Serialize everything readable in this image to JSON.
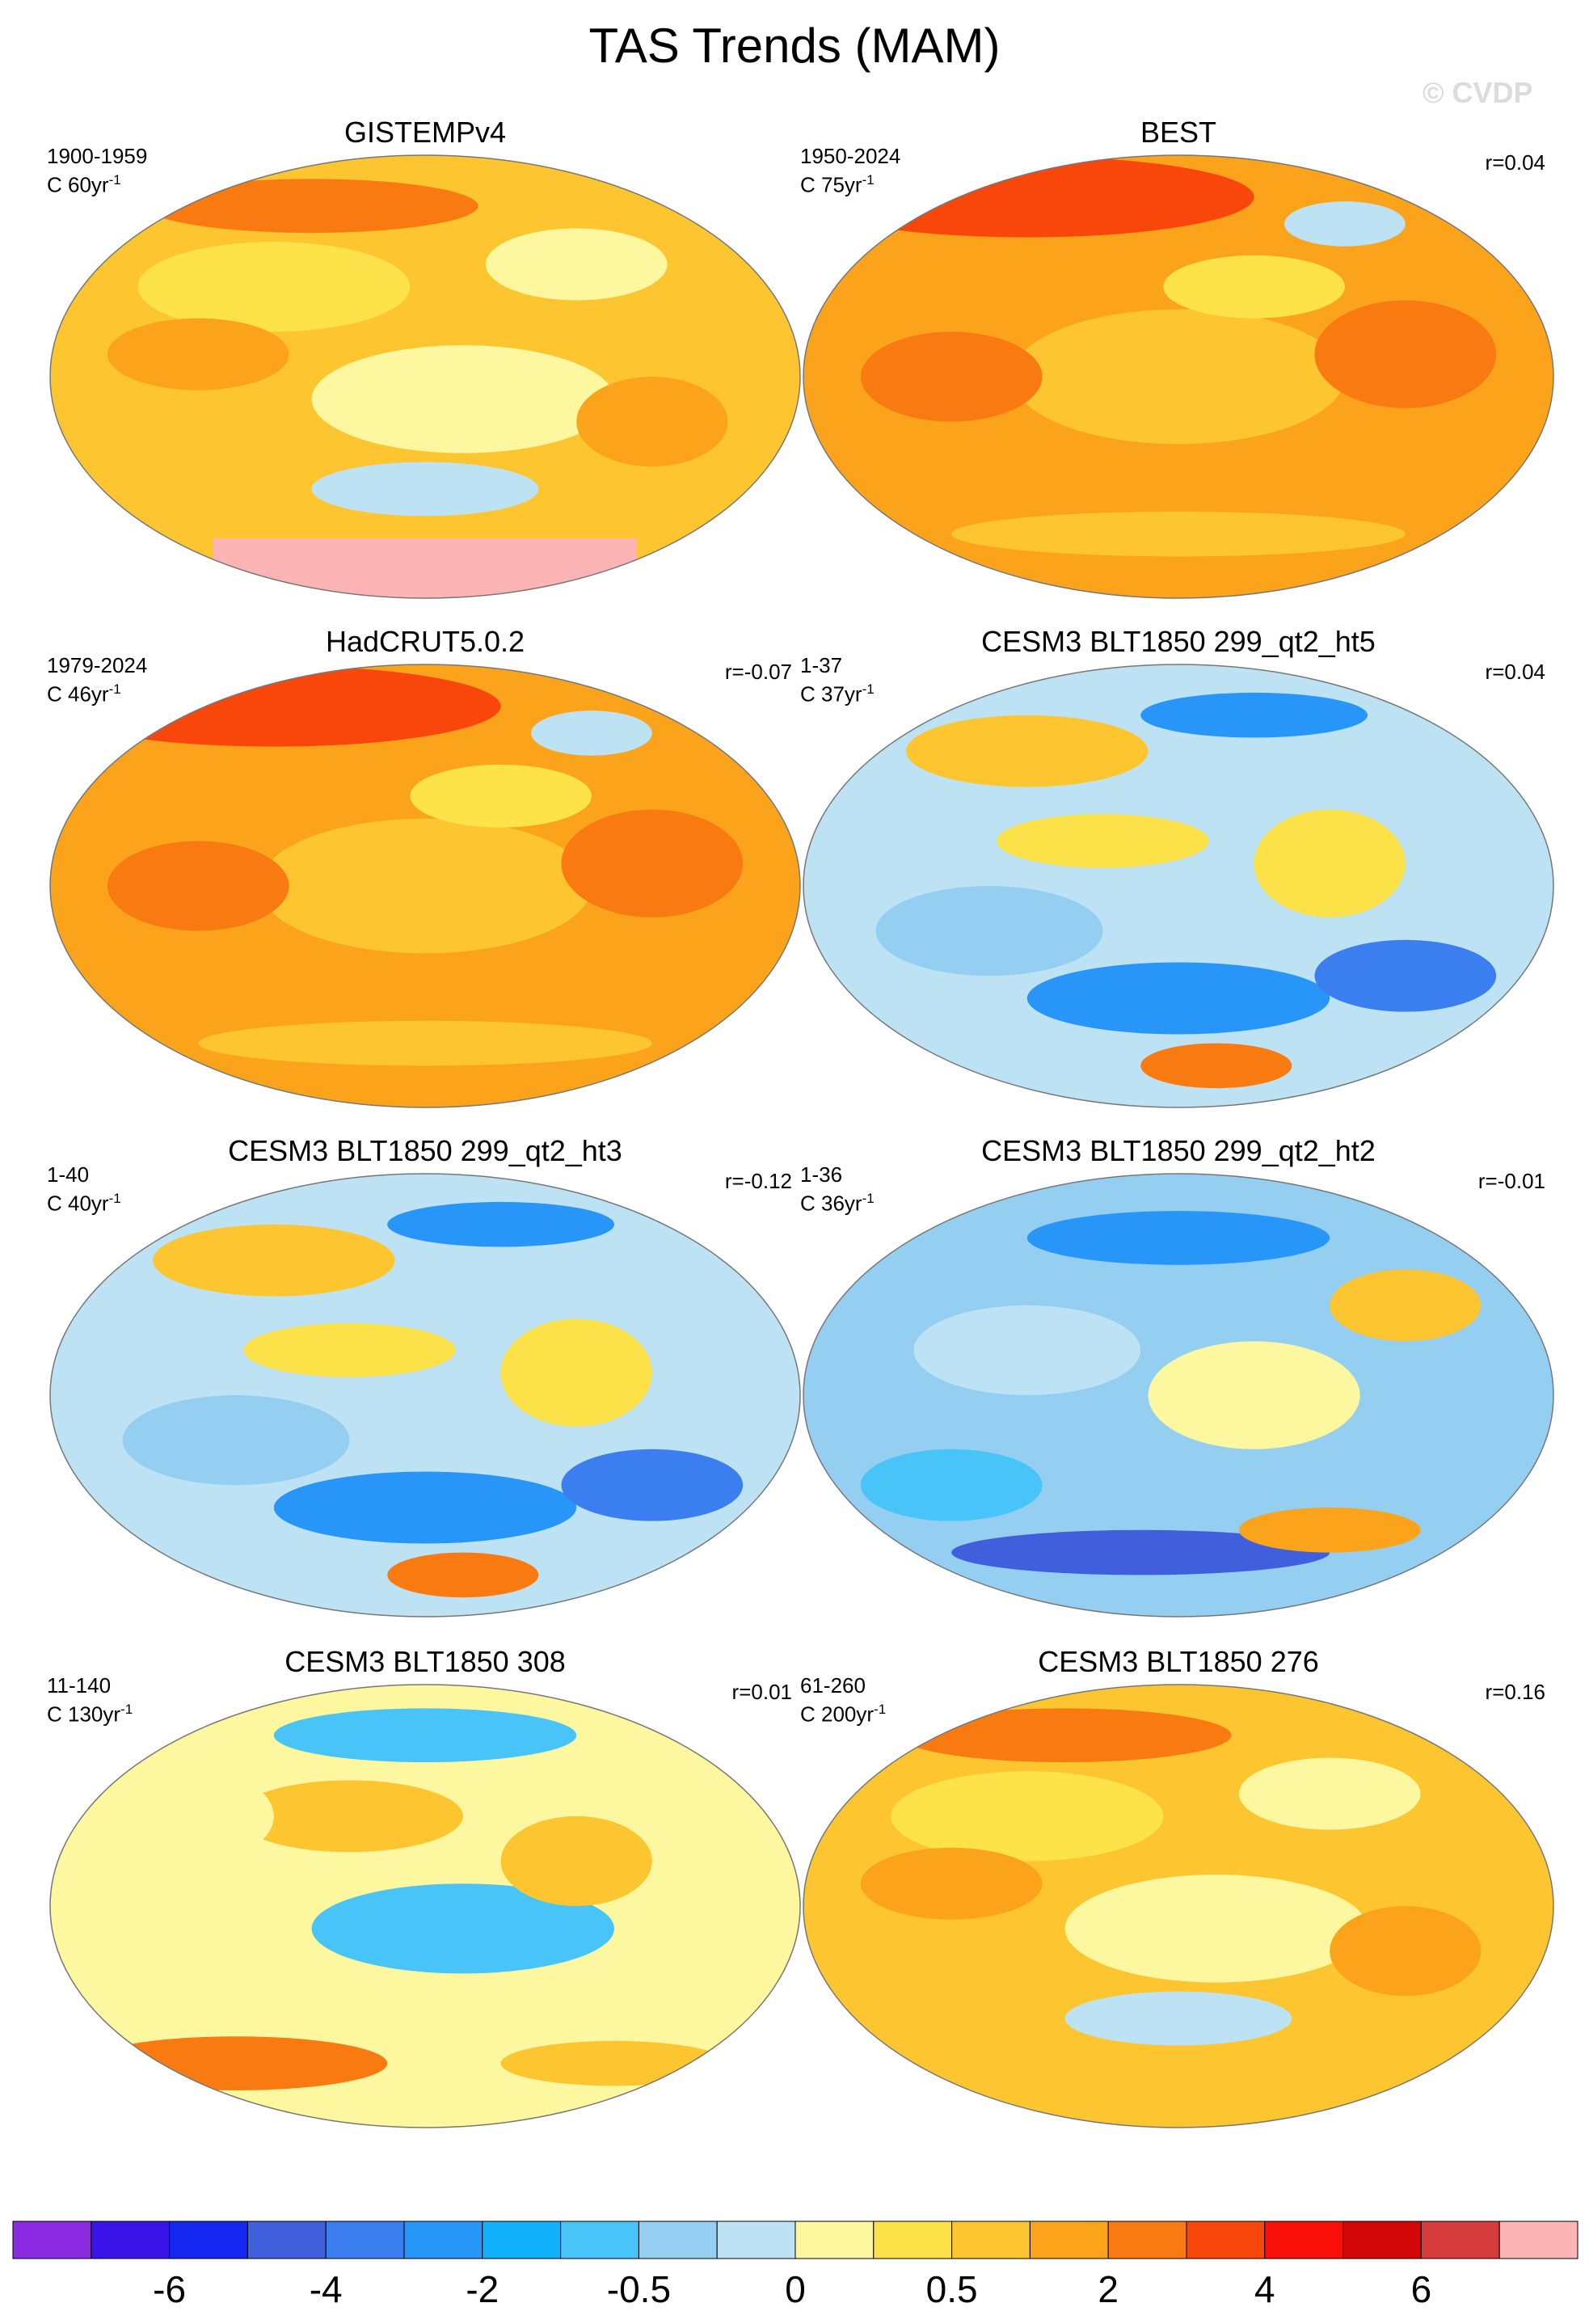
{
  "figure": {
    "title": "TAS Trends (MAM)",
    "watermark": "© CVDP"
  },
  "panels": [
    {
      "title": "GISTEMPv4",
      "years": "1900-1959",
      "units": "C 60yr",
      "units_sup": "-1",
      "corr": "",
      "pattern": "warm-mild",
      "missing_antarctica": true
    },
    {
      "title": "BEST",
      "years": "1950-2024",
      "units": "C 75yr",
      "units_sup": "-1",
      "corr": "r=0.04",
      "pattern": "warm-strong",
      "missing_antarctica": false
    },
    {
      "title": "HadCRUT5.0.2",
      "years": "1979-2024",
      "units": "C 46yr",
      "units_sup": "-1",
      "corr": "r=-0.07",
      "pattern": "warm-strong",
      "missing_antarctica": false
    },
    {
      "title": "CESM3 BLT1850 299_qt2_ht5",
      "years": "1-37",
      "units": "C 37yr",
      "units_sup": "-1",
      "corr": "r=0.04",
      "pattern": "mixed-cool",
      "missing_antarctica": false
    },
    {
      "title": "CESM3 BLT1850 299_qt2_ht3",
      "years": "1-40",
      "units": "C 40yr",
      "units_sup": "-1",
      "corr": "r=-0.12",
      "pattern": "mixed-cool",
      "missing_antarctica": false
    },
    {
      "title": "CESM3 BLT1850 299_qt2_ht2",
      "years": "1-36",
      "units": "C 36yr",
      "units_sup": "-1",
      "corr": "r=-0.01",
      "pattern": "cool",
      "missing_antarctica": false
    },
    {
      "title": "CESM3 BLT1850 308",
      "years": "11-140",
      "units": "C 130yr",
      "units_sup": "-1",
      "corr": "r=0.01",
      "pattern": "mixed-warm",
      "missing_antarctica": false
    },
    {
      "title": "CESM3 BLT1850 276",
      "years": "61-260",
      "units": "C 200yr",
      "units_sup": "-1",
      "corr": "r=0.16",
      "pattern": "warm-mild",
      "missing_antarctica": false
    }
  ],
  "colorbar": {
    "colors": [
      "#8b2be2",
      "#3a13e8",
      "#1427f0",
      "#3f5fdc",
      "#3b7ef0",
      "#2896f8",
      "#12b2fa",
      "#48c4f8",
      "#94cef0",
      "#bce2f4",
      "#fdf7a0",
      "#fde24a",
      "#fdc631",
      "#fca31c",
      "#fa7a12",
      "#f9470c",
      "#f80f08",
      "#d30708",
      "#d63c3c",
      "#fdb4b4"
    ],
    "labels": [
      "-6",
      "-4",
      "-2",
      "-0.5",
      "0",
      "0.5",
      "2",
      "4",
      "6"
    ]
  }
}
